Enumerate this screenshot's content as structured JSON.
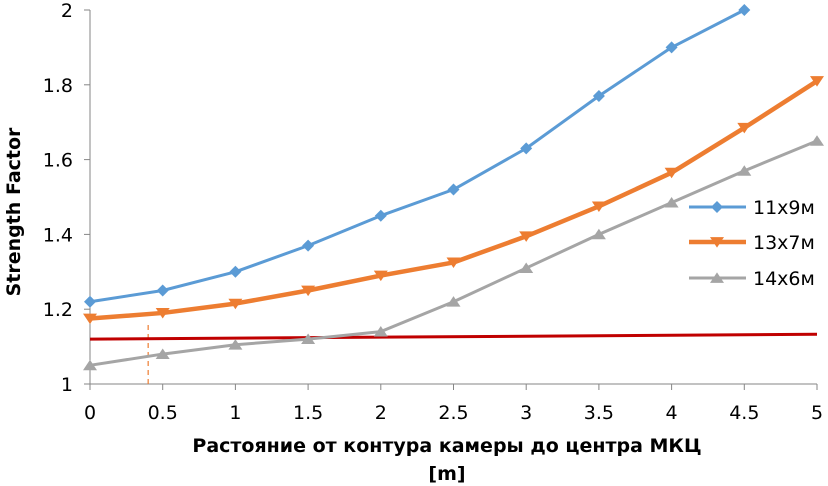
{
  "chart_data": {
    "type": "line",
    "xlabel_line1": "Растояние от контура камеры до центра МКЦ",
    "xlabel_line2": "[m]",
    "ylabel": "Strength Factor",
    "xlim": [
      0,
      5
    ],
    "ylim": [
      1,
      2
    ],
    "x_ticks": [
      "0",
      "0.5",
      "1",
      "1.5",
      "2",
      "2.5",
      "3",
      "3.5",
      "4",
      "4.5",
      "5"
    ],
    "y_ticks": [
      "1",
      "1.2",
      "1.4",
      "1.6",
      "1.8",
      "2"
    ],
    "grid": false,
    "legend_position": "right",
    "series": [
      {
        "name": "11x9м",
        "color": "#5b9bd5",
        "marker": "diamond",
        "x": [
          0,
          0.5,
          1,
          1.5,
          2,
          2.5,
          3,
          3.5,
          4,
          4.5
        ],
        "values": [
          1.22,
          1.25,
          1.3,
          1.37,
          1.45,
          1.52,
          1.63,
          1.77,
          1.9,
          2.0
        ]
      },
      {
        "name": "13x7м",
        "color": "#ed7d31",
        "marker": "triangle-down",
        "x": [
          0,
          0.5,
          1,
          1.5,
          2,
          2.5,
          3,
          3.5,
          4,
          4.5,
          5
        ],
        "values": [
          1.175,
          1.19,
          1.215,
          1.25,
          1.29,
          1.325,
          1.395,
          1.475,
          1.565,
          1.685,
          1.81
        ]
      },
      {
        "name": "14x6м",
        "color": "#a5a5a5",
        "marker": "triangle-up",
        "x": [
          0,
          0.5,
          1,
          1.5,
          2,
          2.5,
          3,
          3.5,
          4,
          4.5,
          5
        ],
        "values": [
          1.05,
          1.08,
          1.105,
          1.12,
          1.14,
          1.22,
          1.31,
          1.4,
          1.485,
          1.57,
          1.65
        ]
      }
    ],
    "reference_line": {
      "color": "#c00000",
      "x": [
        0,
        5
      ],
      "values": [
        1.12,
        1.133
      ]
    },
    "reference_vline": {
      "color": "#ed7d31",
      "x": 0.4,
      "from": 1,
      "to": 1.16
    }
  }
}
